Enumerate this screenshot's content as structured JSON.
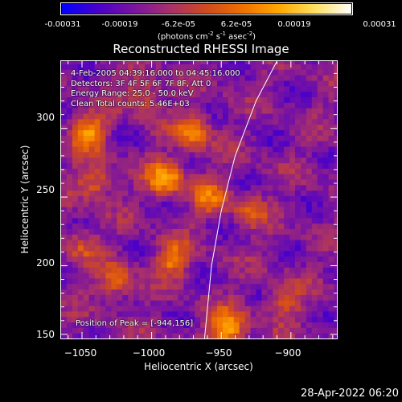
{
  "colorbar": {
    "tick_labels": [
      "-0.00031",
      "-0.00019",
      "-6.2e-05",
      "6.2e-05",
      "0.00019",
      "0.00031"
    ],
    "tick_values": [
      -0.00031,
      -0.00019,
      -6.2e-05,
      6.2e-05,
      0.00019,
      0.00031
    ],
    "range": [
      -0.00031,
      0.00031
    ],
    "units_prefix": "(photons cm",
    "units_exp1": "-2",
    "units_mid1": " s",
    "units_exp2": "-1",
    "units_mid2": " asec",
    "units_exp3": "-2",
    "units_suffix": ")",
    "colors": [
      "#0000ff",
      "#4a00c8",
      "#7a14a0",
      "#a8306a",
      "#d04a1e",
      "#f07000",
      "#ffa800",
      "#ffe060",
      "#ffffff"
    ]
  },
  "chart_data": {
    "type": "heatmap",
    "title": "Reconstructed RHESSI Image",
    "xlabel": "Heliocentric X (arcsec)",
    "ylabel": "Heliocentric Y (arcsec)",
    "xlim": [
      -1065,
      -867
    ],
    "ylim": [
      147,
      349
    ],
    "x_ticks": [
      -1050,
      -1000,
      -950,
      -900
    ],
    "x_tick_labels": [
      "−1050",
      "−1000",
      "−950",
      "−900"
    ],
    "y_ticks": [
      150,
      200,
      250,
      300
    ],
    "y_tick_labels": [
      "150",
      "200",
      "250",
      "300"
    ],
    "limb": [
      [
        -962,
        147
      ],
      [
        -957,
        200
      ],
      [
        -950,
        240
      ],
      [
        -940,
        280
      ],
      [
        -925,
        320
      ],
      [
        -910,
        349
      ]
    ],
    "hot_spots": [
      {
        "x": -990,
        "y": 264,
        "w": 0.00031
      },
      {
        "x": -970,
        "y": 298,
        "w": 0.00024
      },
      {
        "x": -1045,
        "y": 298,
        "w": 0.00026
      },
      {
        "x": -1040,
        "y": 262,
        "w": 0.0002
      },
      {
        "x": -985,
        "y": 205,
        "w": 0.00022
      },
      {
        "x": -945,
        "y": 155,
        "w": 0.00031
      },
      {
        "x": -1025,
        "y": 188,
        "w": 0.00018
      },
      {
        "x": -905,
        "y": 175,
        "w": 0.00016
      },
      {
        "x": -930,
        "y": 240,
        "w": 0.00014
      },
      {
        "x": -1005,
        "y": 325,
        "w": 0.00017
      },
      {
        "x": -1050,
        "y": 215,
        "w": 0.00015
      },
      {
        "x": -958,
        "y": 250,
        "w": 0.00018
      }
    ],
    "annotations": [
      "4-Feb-2005 04:39:16.000 to 04:45:16.000",
      "Detectors: 3F 4F 5F 6F 7F 8F, Att 0",
      "Energy Range: 25.0 - 50.0 keV",
      "Clean    Total counts: 5.46E+03"
    ],
    "peak_text": "Position of Peak = [-944,156]"
  },
  "timestamp": "28-Apr-2022 06:20"
}
